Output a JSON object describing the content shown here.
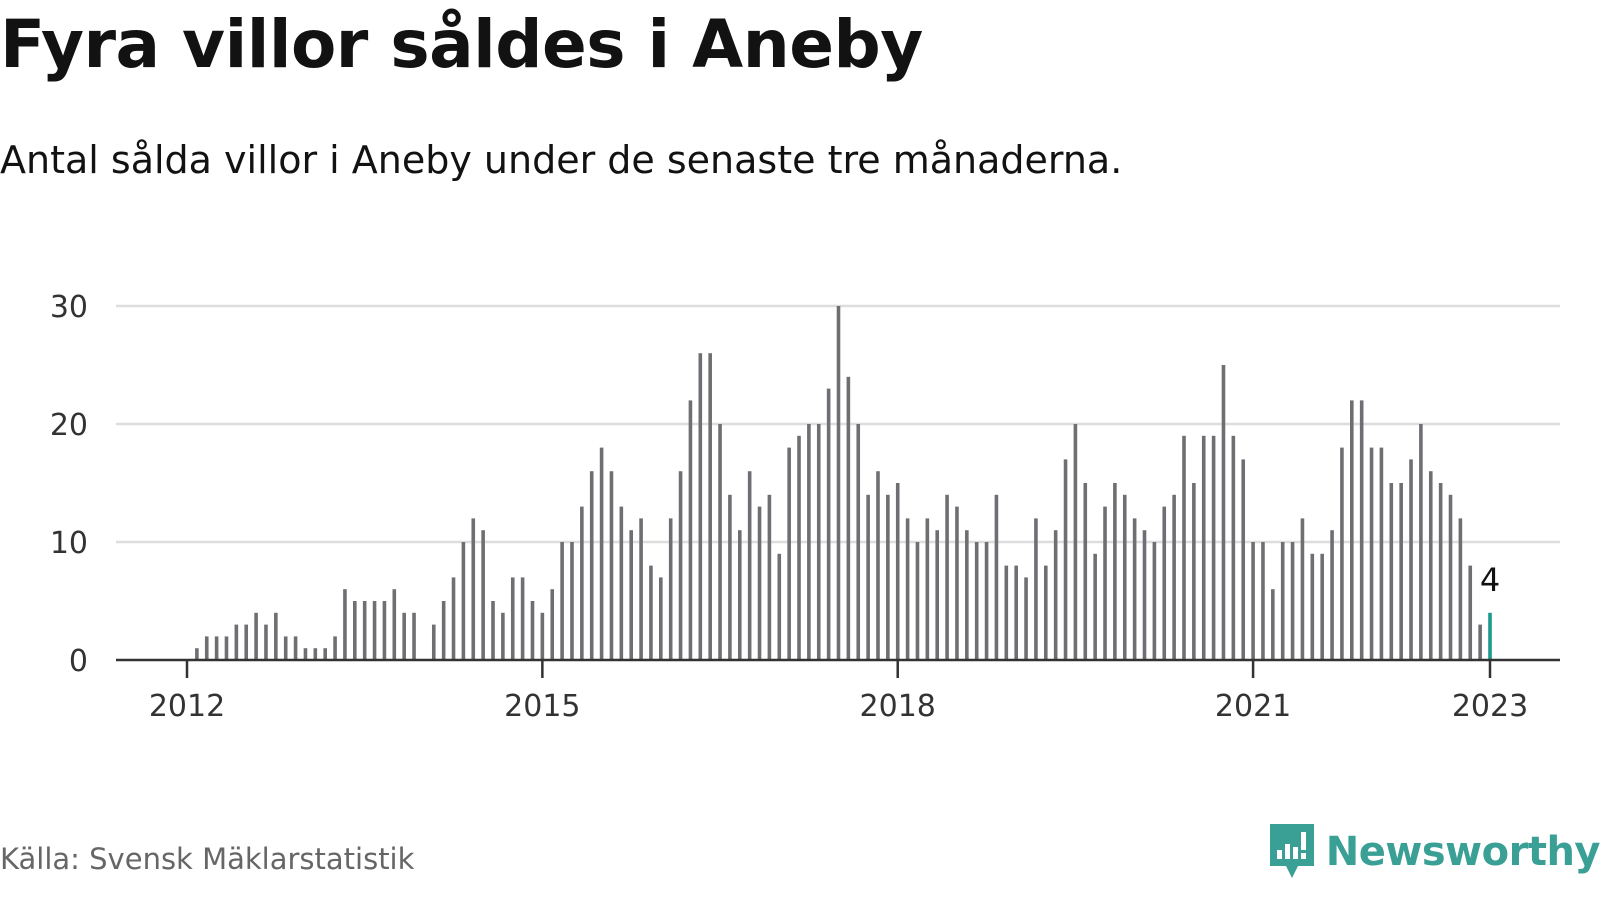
{
  "title": "Fyra villor såldes i Aneby",
  "subtitle": "Antal sålda villor i Aneby under de senaste tre månaderna.",
  "source": "Källa: Svensk Mäklarstatistik",
  "brand": {
    "name": "Newsworthy",
    "icon": "newsworthy-logo-icon"
  },
  "colors": {
    "bar": "#6f6f73",
    "highlight": "#1a9a8c",
    "grid": "#dddddd",
    "axis": "#333333",
    "brand": "#3a9f94"
  },
  "chart_data": {
    "type": "bar",
    "title": "Fyra villor såldes i Aneby",
    "subtitle": "Antal sålda villor i Aneby under de senaste tre månaderna.",
    "xlabel": "",
    "ylabel": "",
    "ylim": [
      0,
      30
    ],
    "y_ticks": [
      0,
      10,
      20,
      30
    ],
    "x_ticks": [
      {
        "label": "2012",
        "index": 0
      },
      {
        "label": "2015",
        "index": 36
      },
      {
        "label": "2018",
        "index": 72
      },
      {
        "label": "2021",
        "index": 108
      },
      {
        "label": "2023",
        "index": 132
      }
    ],
    "start": "2012-01",
    "end": "2023-01",
    "frequency": "monthly",
    "values": [
      0,
      1,
      2,
      2,
      2,
      3,
      3,
      4,
      3,
      4,
      2,
      2,
      1,
      1,
      1,
      2,
      6,
      5,
      5,
      5,
      5,
      6,
      4,
      4,
      0,
      3,
      5,
      7,
      10,
      12,
      11,
      5,
      4,
      7,
      7,
      5,
      4,
      6,
      10,
      10,
      13,
      16,
      18,
      16,
      13,
      11,
      12,
      8,
      7,
      12,
      16,
      22,
      26,
      26,
      20,
      14,
      11,
      16,
      13,
      14,
      9,
      18,
      19,
      20,
      20,
      23,
      30,
      24,
      20,
      14,
      16,
      14,
      15,
      12,
      10,
      12,
      11,
      14,
      13,
      11,
      10,
      10,
      14,
      8,
      8,
      7,
      12,
      8,
      11,
      17,
      20,
      15,
      9,
      13,
      15,
      14,
      12,
      11,
      10,
      13,
      14,
      19,
      15,
      19,
      19,
      25,
      19,
      17,
      10,
      10,
      6,
      10,
      10,
      12,
      9,
      9,
      11,
      18,
      22,
      22,
      18,
      18,
      15,
      15,
      17,
      20,
      16,
      15,
      14,
      12,
      8,
      3,
      4
    ],
    "highlight": {
      "index": 132,
      "value": 4,
      "label": "4"
    }
  }
}
